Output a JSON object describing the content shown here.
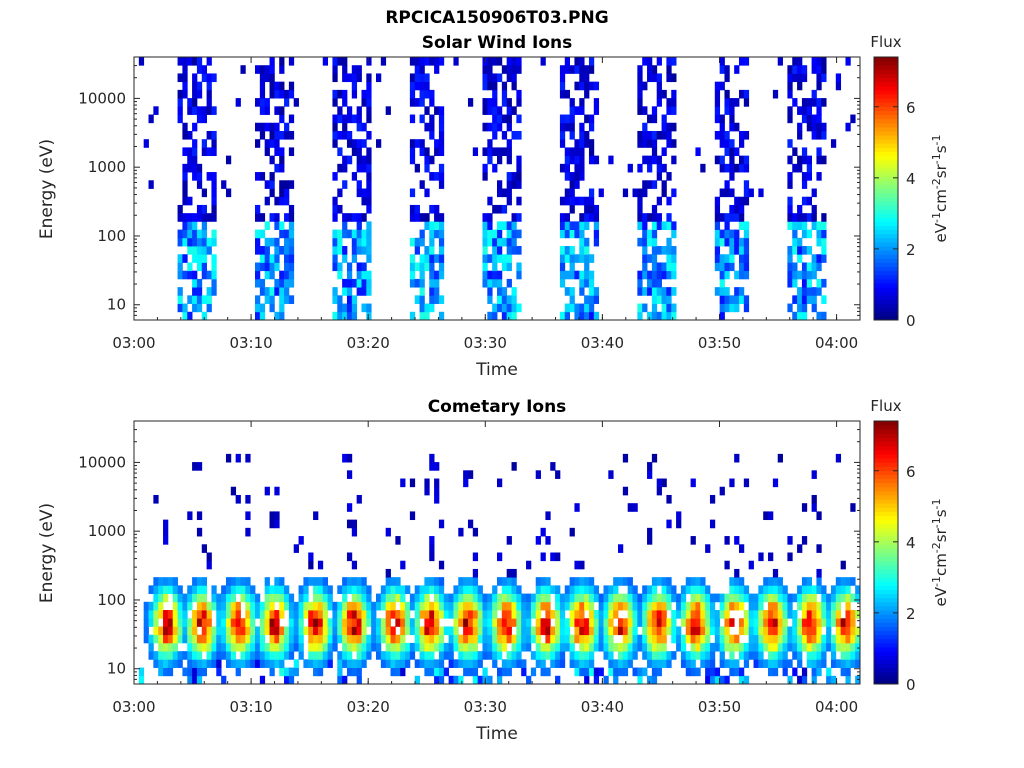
{
  "figure_title": "RPCICA150906T03.PNG",
  "colors": {
    "axis": "#262626",
    "text": "#262626"
  },
  "chart_data": [
    {
      "type": "heatmap",
      "title": "Solar Wind Ions",
      "xlabel": "Time",
      "ylabel": "Energy (eV)",
      "xticks": [
        "03:00",
        "03:10",
        "03:20",
        "03:30",
        "03:40",
        "03:50",
        "04:00"
      ],
      "xlim_minutes": [
        0,
        62
      ],
      "yticks": [
        10,
        100,
        1000,
        10000
      ],
      "ytick_labels": [
        "10",
        "100",
        "1000",
        "10000"
      ],
      "ylim": [
        6,
        40000
      ],
      "yscale": "log",
      "colorbar": {
        "label": "Flux",
        "units": "eV-1cm-2sr-1s-1",
        "range": [
          0,
          7.4
        ],
        "ticks": [
          "0",
          "2",
          "4",
          "6"
        ],
        "colormap": "jet"
      },
      "pattern": {
        "kind": "sweeps",
        "sweep_centers_min": [
          5.5,
          12.0,
          18.5,
          25.0,
          31.5,
          38.0,
          44.5,
          51.0,
          57.5
        ],
        "sweep_width_min": 3.2,
        "dense_energy_range": [
          6,
          40000
        ],
        "flux_low": 0.3,
        "flux_high": 2.8,
        "background_density": 0.02
      }
    },
    {
      "type": "heatmap",
      "title": "Cometary Ions",
      "xlabel": "Time",
      "ylabel": "Energy (eV)",
      "xticks": [
        "03:00",
        "03:10",
        "03:20",
        "03:30",
        "03:40",
        "03:50",
        "04:00"
      ],
      "xlim_minutes": [
        0,
        62
      ],
      "yticks": [
        10,
        100,
        1000,
        10000
      ],
      "ytick_labels": [
        "10",
        "100",
        "1000",
        "10000"
      ],
      "ylim": [
        6,
        40000
      ],
      "yscale": "log",
      "colorbar": {
        "label": "Flux",
        "units": "eV-1cm-2sr-1s-1",
        "range": [
          0,
          7.4
        ],
        "ticks": [
          "0",
          "2",
          "4",
          "6"
        ],
        "colormap": "jet"
      },
      "pattern": {
        "kind": "blobs",
        "blob_centers_min": [
          2.8,
          5.8,
          9.0,
          12.0,
          15.5,
          18.8,
          22.3,
          25.3,
          28.5,
          31.8,
          35.2,
          38.3,
          41.5,
          44.8,
          48.0,
          51.3,
          54.5,
          57.8,
          60.8
        ],
        "peak_energy": 45,
        "peak_flux": 6.8,
        "sparse_energy_range": [
          200,
          12000
        ]
      }
    }
  ]
}
